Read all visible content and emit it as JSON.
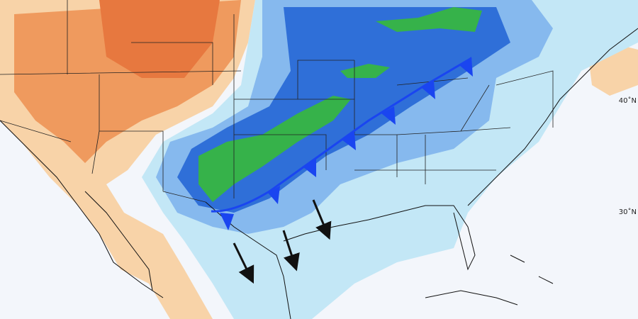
{
  "map": {
    "latitude_labels": [
      "40˚N",
      "30˚N"
    ]
  }
}
